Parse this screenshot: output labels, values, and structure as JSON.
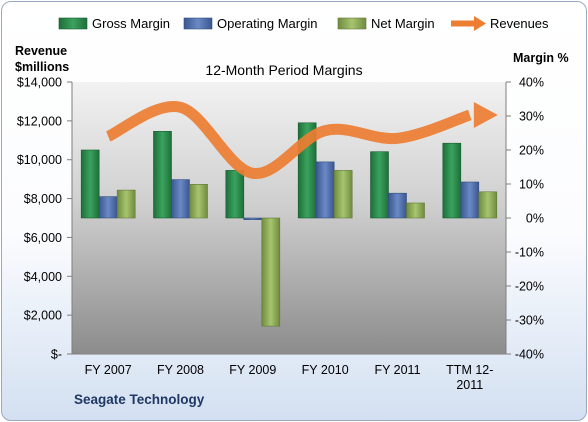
{
  "chart_data": {
    "type": "bar",
    "title": "12-Month Period Margins",
    "categories": [
      "FY 2007",
      "FY 2008",
      "FY 2009",
      "FY 2010",
      "FY 2011",
      "TTM 12-2011"
    ],
    "category_lines": [
      [
        "FY 2007"
      ],
      [
        "FY 2008"
      ],
      [
        "FY 2009"
      ],
      [
        "FY 2010"
      ],
      [
        "FY 2011"
      ],
      [
        "TTM 12-",
        "2011"
      ]
    ],
    "series": [
      {
        "name": "Gross Margin",
        "axis": "right",
        "color": "#2e8b4e",
        "values": [
          20.0,
          25.5,
          14.0,
          28.0,
          19.5,
          22.0
        ]
      },
      {
        "name": "Operating Margin",
        "axis": "right",
        "color": "#4f6fae",
        "values": [
          6.3,
          11.3,
          -0.5,
          16.5,
          7.3,
          10.6
        ]
      },
      {
        "name": "Net Margin",
        "axis": "right",
        "color": "#8ead59",
        "values": [
          8.2,
          9.9,
          -31.8,
          14.0,
          4.4,
          7.7
        ]
      },
      {
        "name": "Revenues",
        "type": "line",
        "axis": "left",
        "color": "#ed7d31",
        "values": [
          11200,
          12700,
          9300,
          11500,
          11100,
          12300
        ]
      }
    ],
    "y_left": {
      "label_lines": [
        "Revenue",
        "$millions"
      ],
      "lim": [
        0,
        14000
      ],
      "ticks": [
        0,
        2000,
        4000,
        6000,
        8000,
        10000,
        12000,
        14000
      ],
      "tick_labels": [
        "$-",
        "$2,000",
        "$4,000",
        "$6,000",
        "$8,000",
        "$10,000",
        "$12,000",
        "$14,000"
      ]
    },
    "y_right": {
      "label": "Margin %",
      "lim": [
        -40,
        40
      ],
      "ticks": [
        -40,
        -30,
        -20,
        -10,
        0,
        10,
        20,
        30,
        40
      ],
      "tick_labels": [
        "-40%",
        "-30%",
        "-20%",
        "-10%",
        "0%",
        "10%",
        "20%",
        "30%",
        "40%"
      ]
    },
    "grid": false,
    "legend_position": "top",
    "plot_background": "gray-gradient"
  },
  "footer": {
    "company": "Seagate Technology"
  }
}
